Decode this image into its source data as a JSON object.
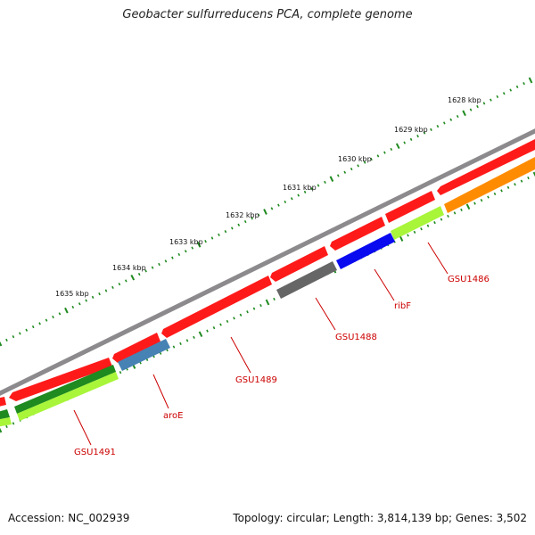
{
  "title": "Geobacter sulfurreducens PCA, complete genome",
  "footer": {
    "accession": "Accession: NC_002939",
    "summary": "Topology: circular; Length: 3,814,139 bp; Genes: 3,502"
  },
  "colors": {
    "backbone": "#8c8a8c",
    "tick": "#1f8a1f",
    "label": "#cc0000",
    "red": "#ff1a1a",
    "green": "#1f8a1f",
    "lime": "#a8f53a",
    "steelblue": "#4682b4",
    "blue": "#0a0af0",
    "gray": "#666666",
    "orange": "#ff8c00"
  },
  "scale_labels": [
    "1628 kbp",
    "1629 kbp",
    "1630 kbp",
    "1631 kbp",
    "1632 kbp",
    "1633 kbp",
    "1634 kbp",
    "1635 kbp"
  ],
  "gene_labels": [
    "GSU1486",
    "ribF",
    "GSU1488",
    "GSU1489",
    "aroE",
    "GSU1491"
  ]
}
